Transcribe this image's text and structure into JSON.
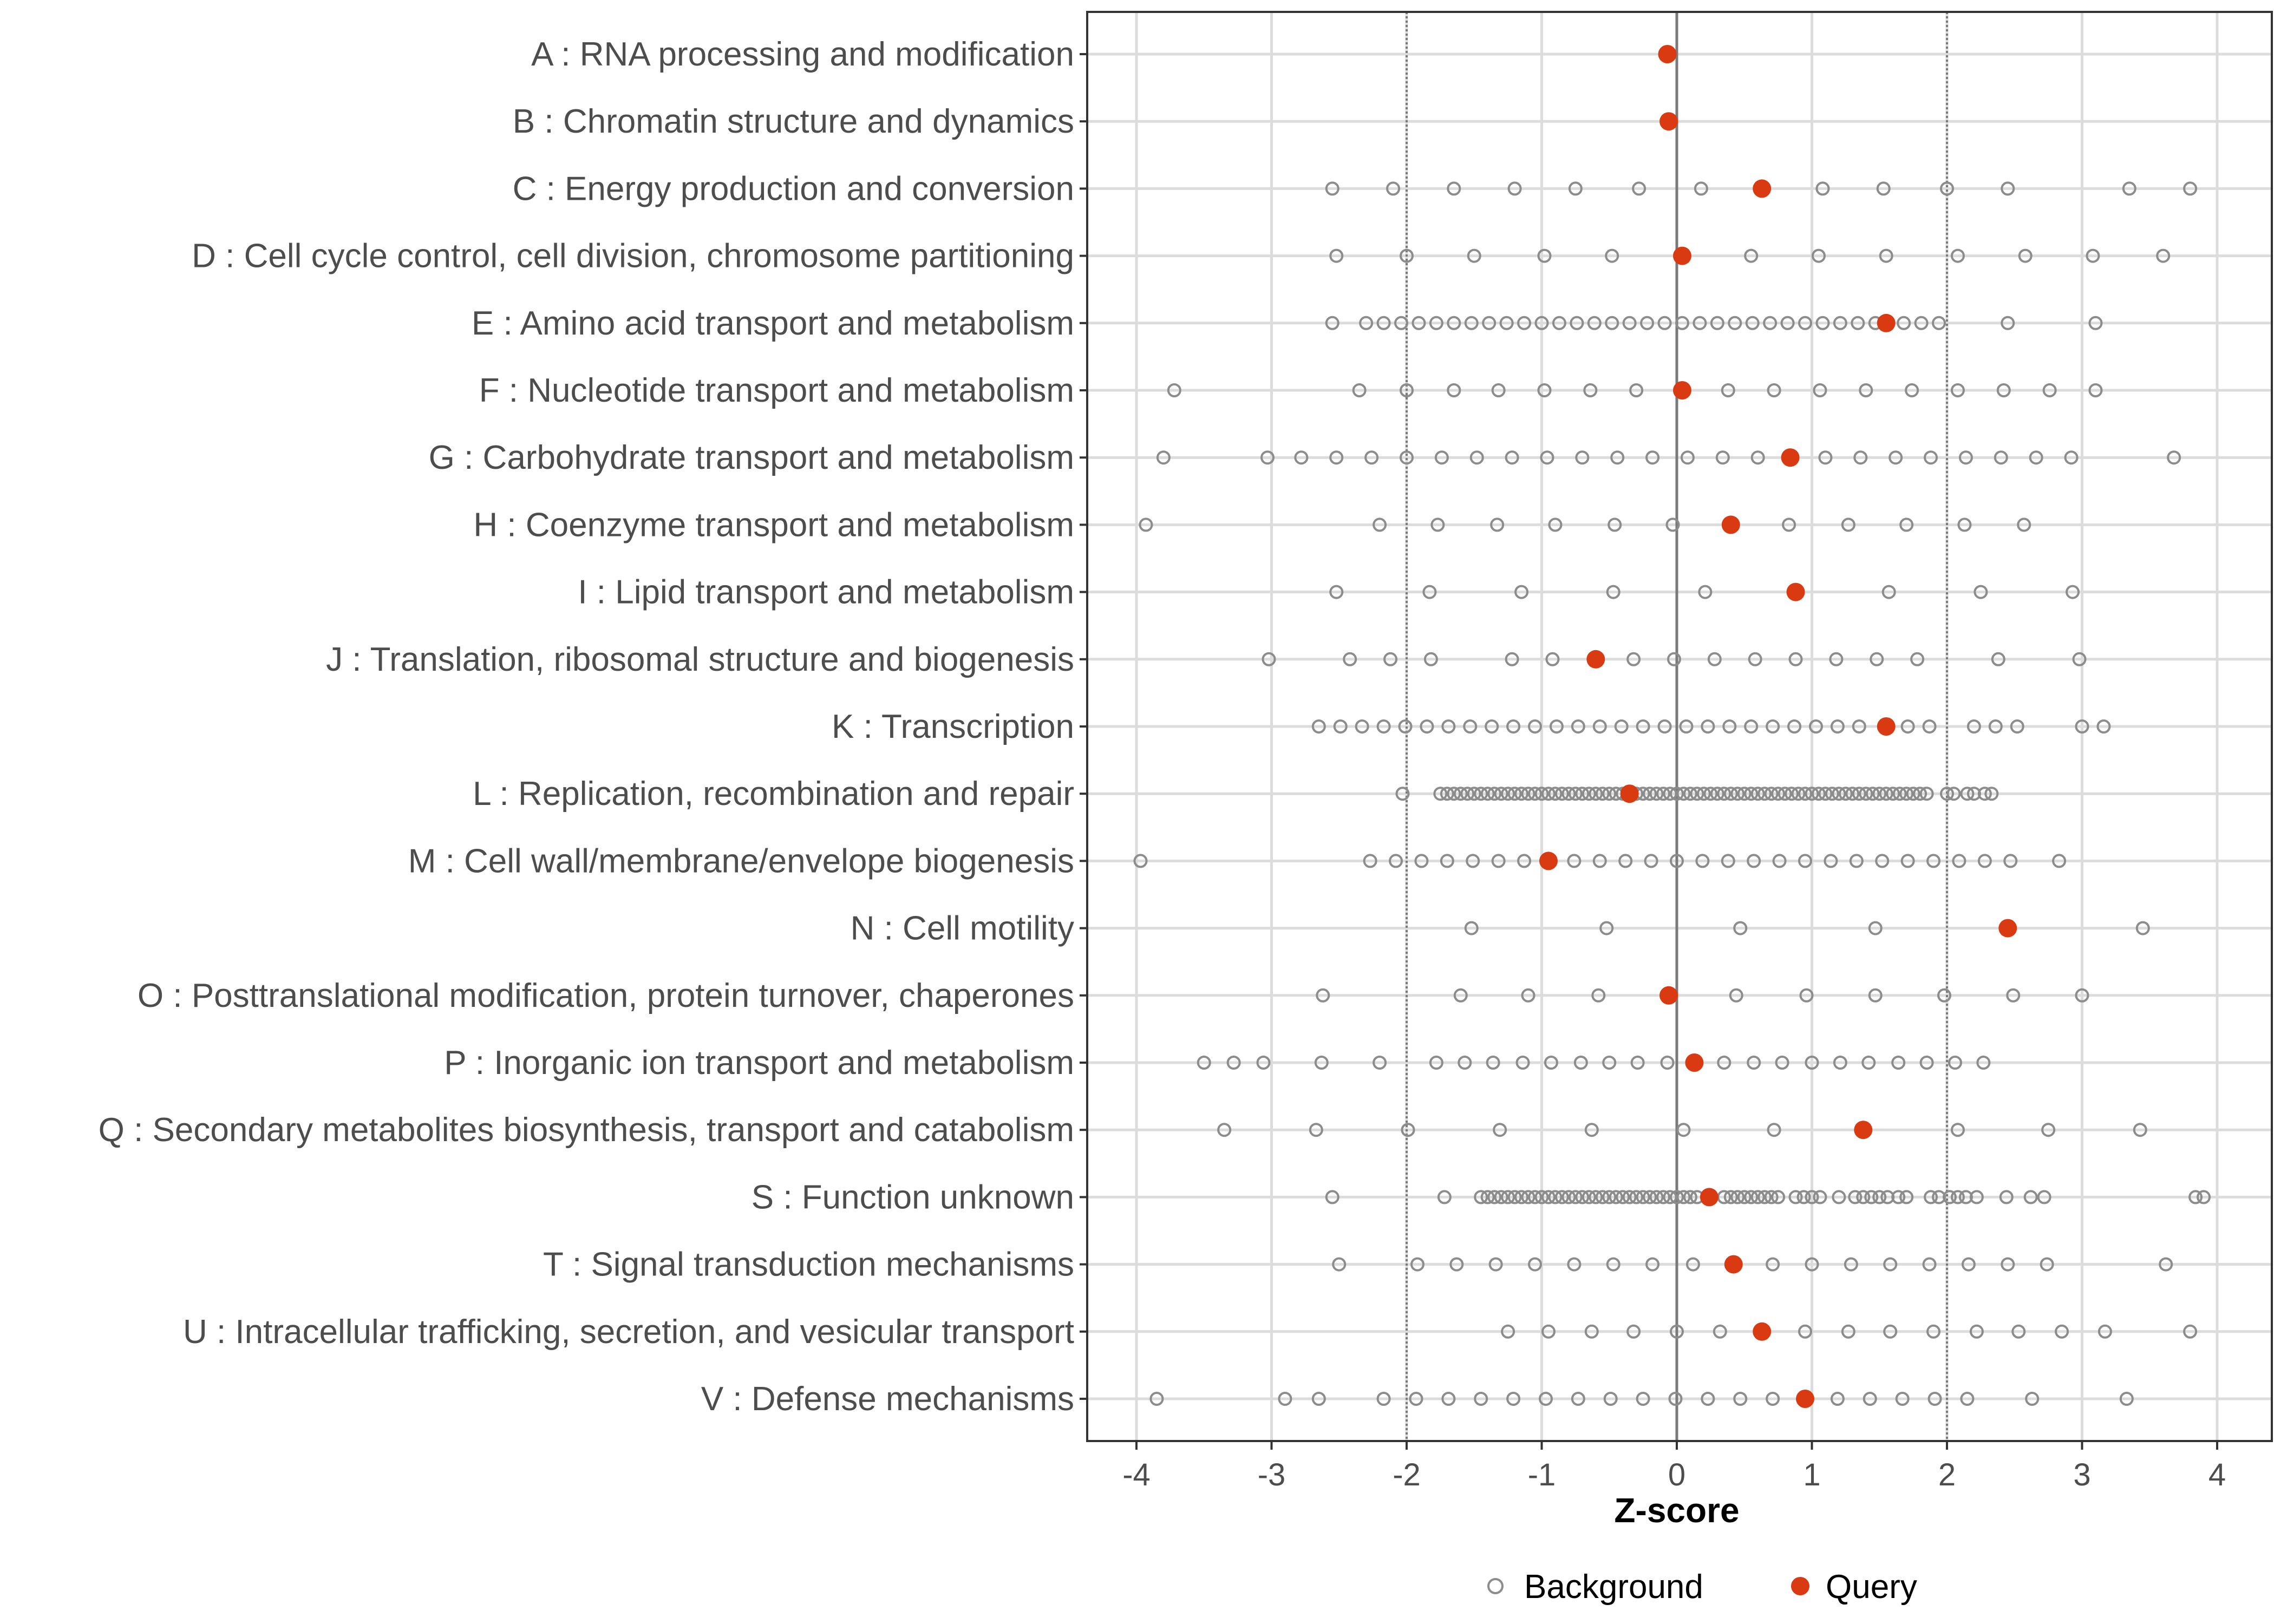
{
  "chart_data": {
    "type": "scatter",
    "title": "",
    "xlabel": "Z-score",
    "ylabel": "",
    "xlim": [
      -4.3,
      4.3
    ],
    "x_ticks": [
      -4,
      -3,
      -2,
      -1,
      0,
      1,
      2,
      3,
      4
    ],
    "x_tick_labels": [
      "-4",
      "-3",
      "-2",
      "-1",
      "0",
      "1",
      "2",
      "3",
      "4"
    ],
    "reference_lines": [
      -2,
      0,
      2
    ],
    "grid": true,
    "legend_position": "bottom",
    "colors": {
      "background": "#8c8c8c",
      "query": "#d93a12",
      "grid": "#dcdcdc",
      "reference": "#7a7a7a"
    },
    "series": [
      {
        "name": "Background",
        "style": "hollow-circle"
      },
      {
        "name": "Query",
        "style": "filled-circle"
      }
    ],
    "categories": [
      {
        "label": "A : RNA processing and modification",
        "query": -0.07,
        "background": []
      },
      {
        "label": "B : Chromatin structure and dynamics",
        "query": -0.06,
        "background": []
      },
      {
        "label": "C : Energy production and conversion",
        "query": 0.63,
        "background": [
          -2.55,
          -2.1,
          -1.65,
          -1.2,
          -0.75,
          -0.28,
          0.18,
          1.08,
          1.53,
          2.0,
          2.45,
          3.35,
          3.8
        ]
      },
      {
        "label": "D : Cell cycle control, cell division, chromosome partitioning",
        "query": 0.04,
        "background": [
          -2.52,
          -2.0,
          -1.5,
          -0.98,
          -0.48,
          0.55,
          1.05,
          1.55,
          2.08,
          2.58,
          3.08,
          3.6
        ]
      },
      {
        "label": "E : Amino acid transport and metabolism",
        "query": 1.55,
        "background": [
          -2.55,
          -2.3,
          -2.17,
          -2.04,
          -1.91,
          -1.78,
          -1.65,
          -1.52,
          -1.39,
          -1.26,
          -1.13,
          -1.0,
          -0.87,
          -0.74,
          -0.61,
          -0.48,
          -0.35,
          -0.22,
          -0.09,
          0.04,
          0.17,
          0.3,
          0.43,
          0.56,
          0.69,
          0.82,
          0.95,
          1.08,
          1.21,
          1.34,
          1.47,
          1.68,
          1.81,
          1.94,
          2.45,
          3.1
        ]
      },
      {
        "label": "F : Nucleotide transport and metabolism",
        "query": 0.04,
        "background": [
          -3.72,
          -2.35,
          -2.0,
          -1.65,
          -1.32,
          -0.98,
          -0.64,
          -0.3,
          0.38,
          0.72,
          1.06,
          1.4,
          1.74,
          2.08,
          2.42,
          2.76,
          3.1
        ]
      },
      {
        "label": "G : Carbohydrate transport and metabolism",
        "query": 0.84,
        "background": [
          -3.8,
          -3.03,
          -2.78,
          -2.52,
          -2.26,
          -2.0,
          -1.74,
          -1.48,
          -1.22,
          -0.96,
          -0.7,
          -0.44,
          -0.18,
          0.08,
          0.34,
          0.6,
          1.1,
          1.36,
          1.62,
          1.88,
          2.14,
          2.4,
          2.66,
          2.92,
          3.68
        ]
      },
      {
        "label": "H : Coenzyme transport and metabolism",
        "query": 0.4,
        "background": [
          -3.93,
          -2.2,
          -1.77,
          -1.33,
          -0.9,
          -0.46,
          -0.03,
          0.83,
          1.27,
          1.7,
          2.13,
          2.57
        ]
      },
      {
        "label": "I : Lipid transport and metabolism",
        "query": 0.88,
        "background": [
          -2.52,
          -1.83,
          -1.15,
          -0.47,
          0.21,
          1.57,
          2.25,
          2.93
        ]
      },
      {
        "label": "J : Translation, ribosomal structure and biogenesis",
        "query": -0.6,
        "background": [
          -3.02,
          -2.42,
          -2.12,
          -1.82,
          -1.22,
          -0.92,
          -0.32,
          -0.02,
          0.28,
          0.58,
          0.88,
          1.18,
          1.48,
          1.78,
          2.38,
          2.98
        ]
      },
      {
        "label": "K : Transcription",
        "query": 1.55,
        "background": [
          -2.65,
          -2.49,
          -2.33,
          -2.17,
          -2.01,
          -1.85,
          -1.69,
          -1.53,
          -1.37,
          -1.21,
          -1.05,
          -0.89,
          -0.73,
          -0.57,
          -0.41,
          -0.25,
          -0.09,
          0.07,
          0.23,
          0.39,
          0.55,
          0.71,
          0.87,
          1.03,
          1.19,
          1.35,
          1.71,
          1.87,
          2.2,
          2.36,
          2.52,
          3.0,
          3.16
        ]
      },
      {
        "label": "L : Replication, recombination and repair",
        "query": -0.35,
        "background": [
          -2.03,
          -1.75,
          -1.7,
          -1.65,
          -1.6,
          -1.55,
          -1.5,
          -1.45,
          -1.4,
          -1.35,
          -1.3,
          -1.25,
          -1.2,
          -1.15,
          -1.1,
          -1.05,
          -1.0,
          -0.95,
          -0.9,
          -0.85,
          -0.8,
          -0.75,
          -0.7,
          -0.65,
          -0.6,
          -0.55,
          -0.5,
          -0.45,
          -0.4,
          -0.3,
          -0.25,
          -0.2,
          -0.15,
          -0.1,
          -0.05,
          0.0,
          0.05,
          0.1,
          0.15,
          0.2,
          0.25,
          0.3,
          0.35,
          0.4,
          0.45,
          0.5,
          0.55,
          0.6,
          0.65,
          0.7,
          0.75,
          0.8,
          0.85,
          0.9,
          0.95,
          1.0,
          1.05,
          1.1,
          1.15,
          1.2,
          1.25,
          1.3,
          1.35,
          1.4,
          1.45,
          1.5,
          1.55,
          1.6,
          1.65,
          1.7,
          1.75,
          1.8,
          1.85,
          2.0,
          2.05,
          2.15,
          2.2,
          2.28,
          2.33
        ]
      },
      {
        "label": "M : Cell wall/membrane/envelope biogenesis",
        "query": -0.95,
        "background": [
          -3.97,
          -2.27,
          -2.08,
          -1.89,
          -1.7,
          -1.51,
          -1.32,
          -1.13,
          -0.76,
          -0.57,
          -0.38,
          -0.19,
          0.0,
          0.19,
          0.38,
          0.57,
          0.76,
          0.95,
          1.14,
          1.33,
          1.52,
          1.71,
          1.9,
          2.09,
          2.28,
          2.47,
          2.83
        ]
      },
      {
        "label": "N : Cell motility",
        "query": 2.45,
        "background": [
          -1.52,
          -0.52,
          0.47,
          1.47,
          3.45
        ]
      },
      {
        "label": "O : Posttranslational modification, protein turnover, chaperones",
        "query": -0.06,
        "background": [
          -2.62,
          -1.6,
          -1.1,
          -0.58,
          0.44,
          0.96,
          1.47,
          1.98,
          2.49,
          3.0
        ]
      },
      {
        "label": "P : Inorganic ion transport and metabolism",
        "query": 0.13,
        "background": [
          -3.5,
          -3.28,
          -3.06,
          -2.63,
          -2.2,
          -1.78,
          -1.57,
          -1.36,
          -1.14,
          -0.93,
          -0.71,
          -0.5,
          -0.29,
          -0.07,
          0.35,
          0.57,
          0.78,
          1.0,
          1.21,
          1.42,
          1.64,
          1.85,
          2.06,
          2.27
        ]
      },
      {
        "label": "Q : Secondary metabolites biosynthesis, transport and catabolism",
        "query": 1.38,
        "background": [
          -3.35,
          -2.67,
          -1.99,
          -1.31,
          -0.63,
          0.05,
          0.72,
          2.08,
          2.75,
          3.43
        ]
      },
      {
        "label": "S : Function unknown",
        "query": 0.24,
        "background": [
          -2.55,
          -1.72,
          -1.45,
          -1.4,
          -1.35,
          -1.3,
          -1.25,
          -1.2,
          -1.15,
          -1.1,
          -1.05,
          -1.0,
          -0.95,
          -0.9,
          -0.85,
          -0.8,
          -0.75,
          -0.7,
          -0.65,
          -0.6,
          -0.55,
          -0.5,
          -0.45,
          -0.4,
          -0.35,
          -0.3,
          -0.25,
          -0.2,
          -0.15,
          -0.1,
          -0.05,
          0.0,
          0.05,
          0.1,
          0.15,
          0.35,
          0.4,
          0.45,
          0.5,
          0.55,
          0.6,
          0.65,
          0.7,
          0.75,
          0.88,
          0.94,
          1.0,
          1.06,
          1.2,
          1.32,
          1.38,
          1.44,
          1.5,
          1.56,
          1.64,
          1.7,
          1.88,
          1.94,
          2.02,
          2.08,
          2.14,
          2.22,
          2.44,
          2.62,
          2.72,
          3.84,
          3.9
        ]
      },
      {
        "label": "T : Signal transduction mechanisms",
        "query": 0.42,
        "background": [
          -2.5,
          -1.92,
          -1.63,
          -1.34,
          -1.05,
          -0.76,
          -0.47,
          -0.18,
          0.12,
          0.71,
          1.0,
          1.29,
          1.58,
          1.87,
          2.16,
          2.45,
          2.74,
          3.62
        ]
      },
      {
        "label": "U : Intracellular trafficking, secretion, and vesicular transport",
        "query": 0.63,
        "background": [
          -1.25,
          -0.95,
          -0.63,
          -0.32,
          0.0,
          0.32,
          0.95,
          1.27,
          1.58,
          1.9,
          2.22,
          2.53,
          2.85,
          3.17,
          3.8
        ]
      },
      {
        "label": "V : Defense mechanisms",
        "query": 0.95,
        "background": [
          -3.85,
          -2.9,
          -2.65,
          -2.17,
          -1.93,
          -1.69,
          -1.45,
          -1.21,
          -0.97,
          -0.73,
          -0.49,
          -0.25,
          -0.01,
          0.23,
          0.47,
          0.71,
          1.19,
          1.43,
          1.67,
          1.91,
          2.15,
          2.63,
          3.33
        ]
      }
    ]
  }
}
